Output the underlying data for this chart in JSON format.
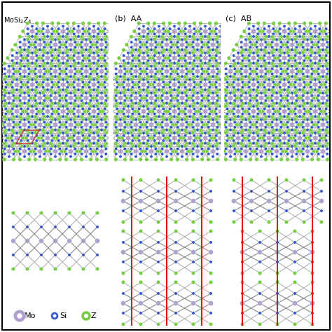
{
  "mo_color": "#B0A0CC",
  "si_color": "#3355CC",
  "z_color": "#77CC44",
  "red_line_color": "#DD1111",
  "background": "#FFFFFF",
  "title": "MoSi₂Z₄",
  "label_b": "(b)  AA",
  "label_c": "(c)  AB",
  "legend_mo": "Mo",
  "legend_si": "Si",
  "legend_z": "Z",
  "mo_r": 3.5,
  "si_r": 2.2,
  "z_r": 2.8
}
